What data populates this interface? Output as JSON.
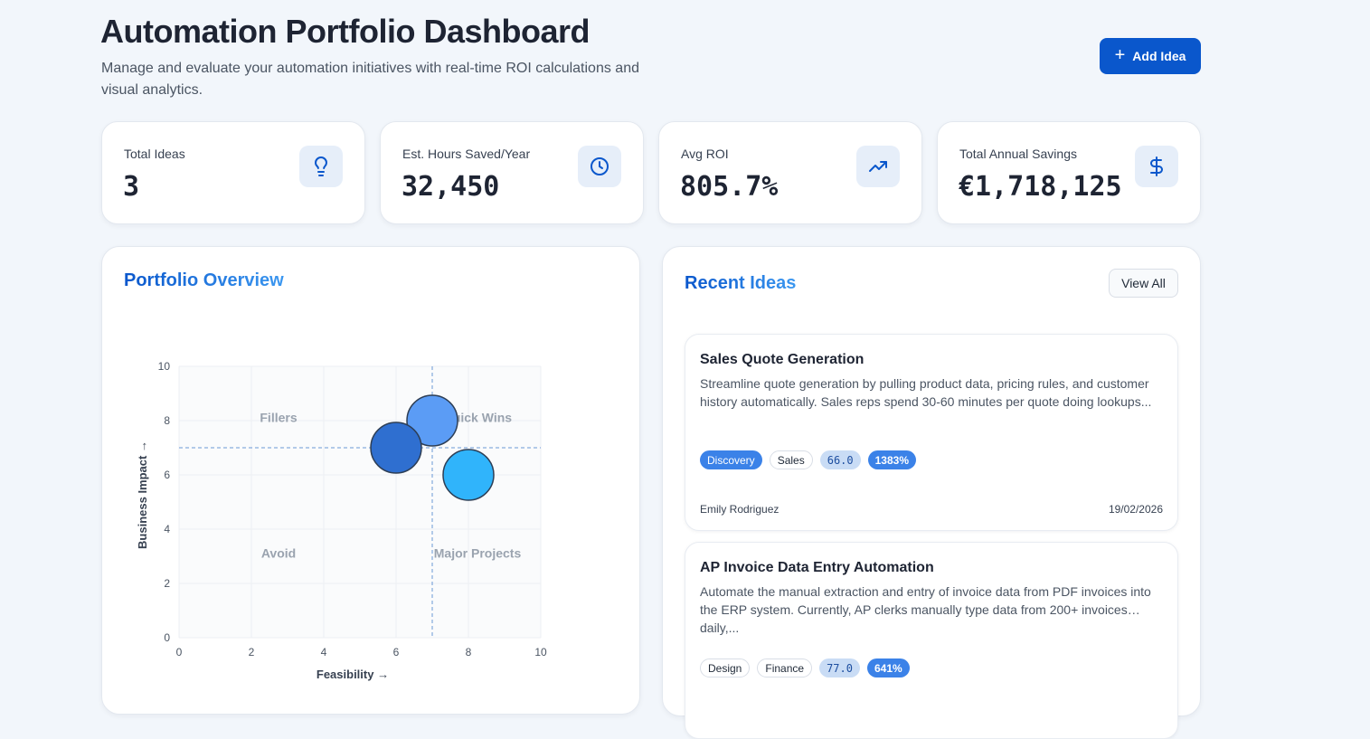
{
  "header": {
    "title": "Automation Portfolio Dashboard",
    "subtitle": "Manage and evaluate your automation initiatives with real-time ROI calculations and visual analytics.",
    "add_button_label": "Add Idea",
    "add_button_icon": "plus-icon"
  },
  "stats": [
    {
      "label": "Total Ideas",
      "value": "3",
      "icon": "lightbulb-icon"
    },
    {
      "label": "Est. Hours Saved/Year",
      "value": "32,450",
      "icon": "clock-icon"
    },
    {
      "label": "Avg ROI",
      "value": "805.7%",
      "icon": "trending-up-icon"
    },
    {
      "label": "Total Annual Savings",
      "value": "€1,718,125",
      "icon": "dollar-icon"
    }
  ],
  "portfolio": {
    "title": "Portfolio Overview"
  },
  "chart_data": {
    "type": "scatter",
    "title": "Portfolio Overview",
    "xlabel": "Feasibility →",
    "ylabel": "Business Impact →",
    "xlim": [
      0,
      10
    ],
    "ylim": [
      0,
      10
    ],
    "xticks": [
      0,
      2,
      4,
      6,
      8,
      10
    ],
    "yticks": [
      0,
      2,
      4,
      6,
      8,
      10
    ],
    "grid": true,
    "quadrant_lines": {
      "x": 7,
      "y": 7
    },
    "quadrant_labels": [
      "Fillers",
      "Quick Wins",
      "Avoid",
      "Major Projects"
    ],
    "points": [
      {
        "x": 7,
        "y": 8,
        "color": "#5b9cf5"
      },
      {
        "x": 6,
        "y": 7,
        "color": "#2f6fd0"
      },
      {
        "x": 8,
        "y": 6,
        "color": "#30b4fb"
      }
    ]
  },
  "recent": {
    "title": "Recent Ideas",
    "view_all_label": "View All",
    "ideas": [
      {
        "title": "Sales Quote Generation",
        "description": "Streamline quote generation by pulling product data, pricing rules, and customer history automatically. Sales reps spend 30-60 minutes per quote doing lookups...",
        "status": "Discovery",
        "department": "Sales",
        "score": "66.0",
        "roi": "1383%",
        "author": "Emily Rodriguez",
        "date": "19/02/2026"
      },
      {
        "title": "AP Invoice Data Entry Automation",
        "description": "Automate the manual extraction and entry of invoice data from PDF invoices into the ERP system. Currently, AP clerks manually type data from 200+ invoices daily,...",
        "status": "Design",
        "department": "Finance",
        "score": "77.0",
        "roi": "641%",
        "author": "",
        "date": ""
      }
    ]
  },
  "colors": {
    "brand": "#0a57cc",
    "accent": "#3b82e8",
    "background": "#f2f6fb"
  }
}
